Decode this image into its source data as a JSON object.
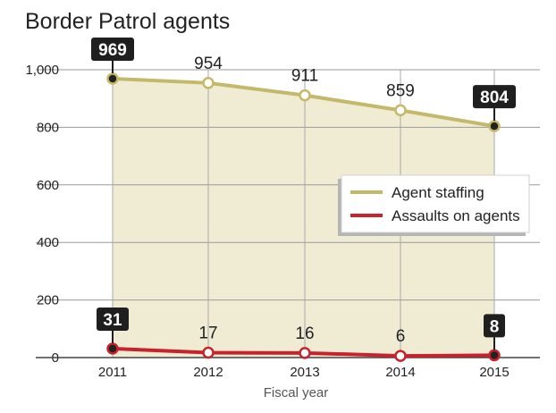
{
  "chart_data": {
    "type": "line",
    "title": "Border Patrol agents",
    "xlabel": "Fiscal year",
    "ylabel": "",
    "categories": [
      "2011",
      "2012",
      "2013",
      "2014",
      "2015"
    ],
    "ylim": [
      0,
      1000
    ],
    "yticks": [
      0,
      200,
      400,
      600,
      800,
      1000
    ],
    "ytick_labels": [
      "0",
      "200",
      "400",
      "600",
      "800",
      "1,000"
    ],
    "grid": true,
    "legend_position": "right",
    "series": [
      {
        "name": "Agent staffing",
        "values": [
          969,
          954,
          911,
          859,
          804
        ],
        "labels": [
          "969",
          "954",
          "911",
          "859",
          "804"
        ],
        "color": "#c4b86a",
        "fill": "#f0ecd3"
      },
      {
        "name": "Assaults on agents",
        "values": [
          31,
          17,
          16,
          6,
          8
        ],
        "labels": [
          "31",
          "17",
          "16",
          "6",
          "8"
        ],
        "color": "#c8232c"
      }
    ]
  }
}
